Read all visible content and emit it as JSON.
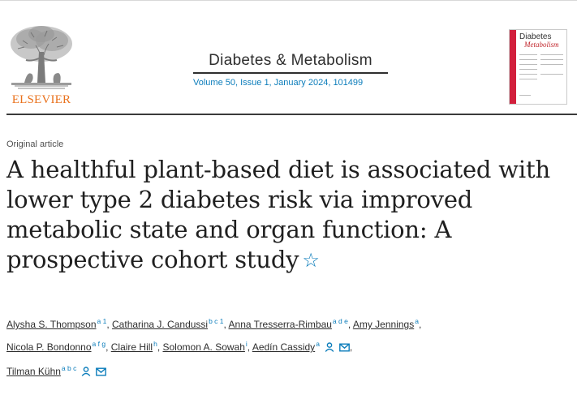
{
  "publisher": {
    "name": "ELSEVIER"
  },
  "journal": {
    "title": "Diabetes & Metabolism",
    "volume_line": "Volume 50, Issue 1, January 2024, 101499",
    "cover_title": "Diabetes",
    "cover_subtitle": "Metabolism"
  },
  "article": {
    "type": "Original article",
    "title": "A healthful plant-based diet is associated with lower type 2 diabetes risk via improved metabolic state and organ function: A prospective cohort study"
  },
  "authors": [
    {
      "name": "Alysha S. Thompson",
      "aff": "a 1"
    },
    {
      "name": "Catharina J. Candussi",
      "aff": "b c 1"
    },
    {
      "name": "Anna Tresserra-Rimbau",
      "aff": "a d e"
    },
    {
      "name": "Amy Jennings",
      "aff": "a"
    },
    {
      "name": "Nicola P. Bondonno",
      "aff": "a f g"
    },
    {
      "name": "Claire Hill",
      "aff": "h"
    },
    {
      "name": "Solomon A. Sowah",
      "aff": "i"
    },
    {
      "name": "Aedín Cassidy",
      "aff": "a"
    },
    {
      "name": "Tilman Kühn",
      "aff": "a b c"
    }
  ],
  "colors": {
    "accent": "#0c7dbb",
    "publisher": "#e9711c",
    "cover_band": "#d21f3c"
  },
  "icons": {
    "title_icon": "star-icon",
    "author_icons": [
      "person-icon",
      "envelope-icon"
    ]
  }
}
